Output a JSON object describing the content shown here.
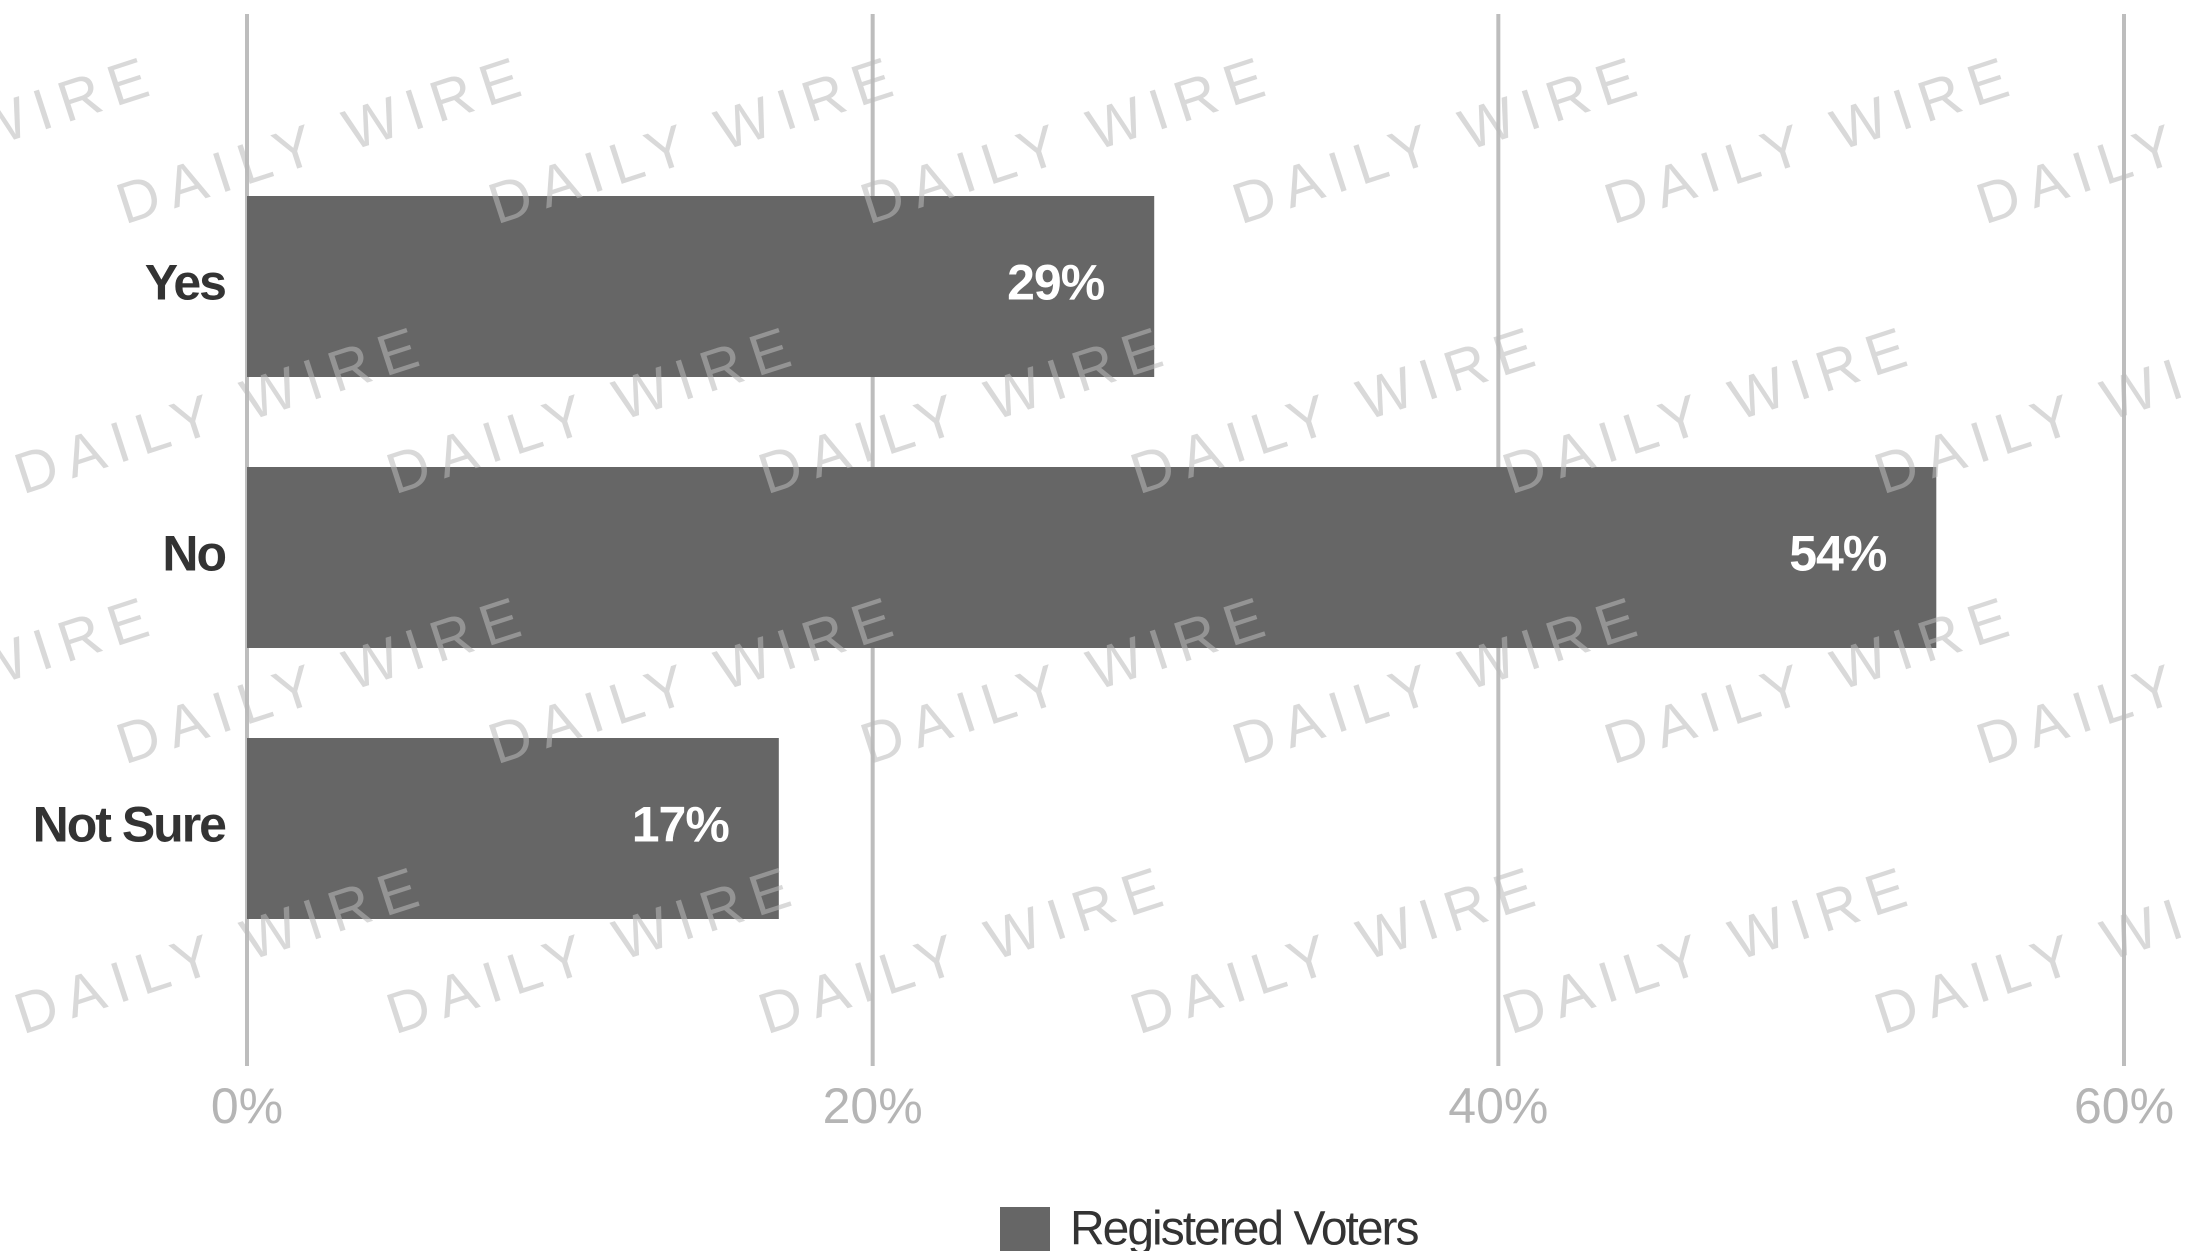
{
  "chart_data": {
    "type": "bar",
    "orientation": "horizontal",
    "categories": [
      "Yes",
      "No",
      "Not Sure"
    ],
    "series": [
      {
        "name": "Registered Voters",
        "color": "#666666",
        "values": [
          29,
          54,
          17
        ],
        "value_labels": [
          "29%",
          "54%",
          "17%"
        ]
      }
    ],
    "xlim": [
      0,
      60
    ],
    "xticks": [
      {
        "value": 0,
        "label": "0%"
      },
      {
        "value": 20,
        "label": "20%"
      },
      {
        "value": 40,
        "label": "40%"
      },
      {
        "value": 60,
        "label": "60%"
      }
    ],
    "grid": true,
    "legend": "bottom",
    "watermark": "DAILY WIRE"
  }
}
